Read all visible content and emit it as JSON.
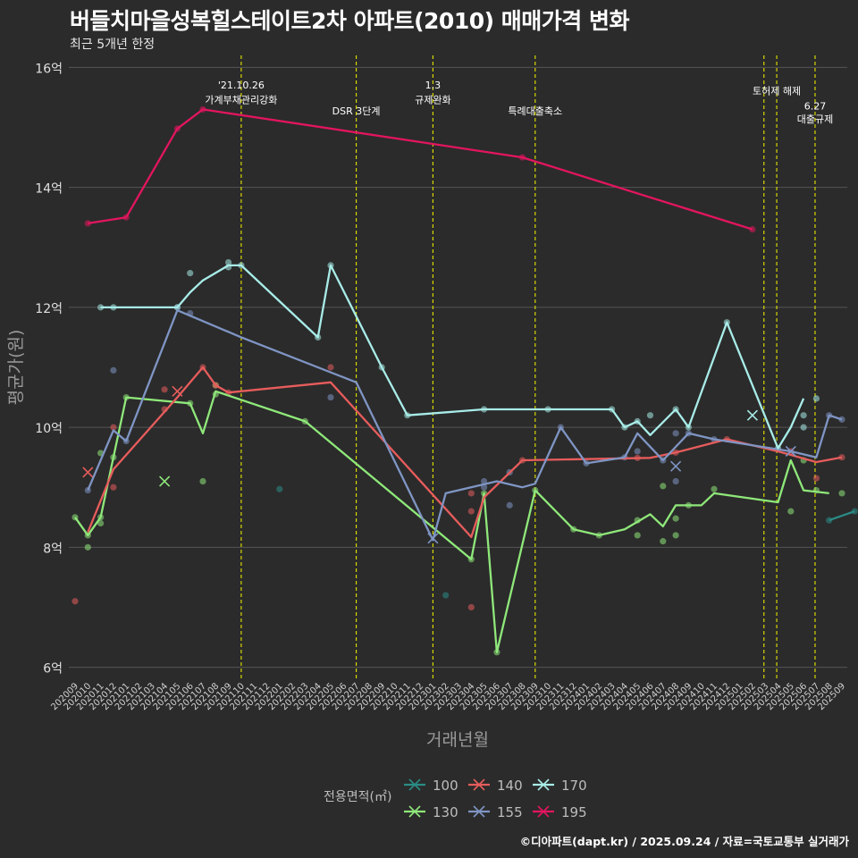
{
  "title": "버들치마을성복힐스테이트2차 아파트(2010) 매매가격 변화",
  "subtitle": "최근 5개년 한정",
  "footer": "©디아파트(dapt.kr) / 2025.09.24 / 자료=국토교통부 실거래가",
  "colors": {
    "background": "#2b2b2b",
    "grid": "#555555",
    "event_line": "#e6e600",
    "s100": "#2a8c86",
    "s130": "#8fe87a",
    "s140": "#e85c5c",
    "s155": "#7f95c4",
    "s170": "#a8ece8",
    "s195": "#e3155f"
  },
  "chart_data": {
    "type": "line",
    "title": "버들치마을성복힐스테이트2차 아파트(2010) 매매가격 변화",
    "subtitle": "최근 5개년 한정",
    "xlabel": "거래년월",
    "ylabel": "평균가(원)",
    "ylim": [
      5.8,
      16.2
    ],
    "yticks": [
      6,
      8,
      10,
      12,
      14,
      16
    ],
    "ytick_labels": [
      "6억",
      "8억",
      "10억",
      "12억",
      "14억",
      "16억"
    ],
    "x_categories": [
      "202009",
      "202010",
      "202011",
      "202012",
      "202101",
      "202102",
      "202103",
      "202104",
      "202105",
      "202106",
      "202107",
      "202108",
      "202109",
      "202110",
      "202111",
      "202112",
      "202201",
      "202202",
      "202203",
      "202204",
      "202205",
      "202206",
      "202207",
      "202208",
      "202209",
      "202210",
      "202211",
      "202212",
      "202301",
      "202302",
      "202303",
      "202304",
      "202305",
      "202306",
      "202307",
      "202308",
      "202309",
      "202310",
      "202311",
      "202312",
      "202401",
      "202402",
      "202403",
      "202404",
      "202405",
      "202406",
      "202407",
      "202408",
      "202409",
      "202410",
      "202411",
      "202412",
      "202501",
      "202502",
      "202503",
      "202504",
      "202505",
      "202506",
      "202507",
      "202508",
      "202509"
    ],
    "legend_title": "전용면적(㎡)",
    "legend_position": "bottom",
    "series": [
      {
        "name": "100",
        "color_key": "s100",
        "line": [
          [
            59,
            8.45
          ],
          [
            61,
            8.6
          ]
        ],
        "points": [
          [
            16,
            8.97
          ],
          [
            29,
            7.2
          ],
          [
            59,
            8.45
          ],
          [
            61,
            8.6
          ]
        ],
        "crosses": []
      },
      {
        "name": "130",
        "color_key": "s130",
        "line": [
          [
            0,
            8.5
          ],
          [
            1,
            8.2
          ],
          [
            2,
            8.5
          ],
          [
            3,
            9.5
          ],
          [
            4,
            10.5
          ],
          [
            9,
            10.4
          ],
          [
            10,
            9.9
          ],
          [
            11,
            10.6
          ],
          [
            18,
            10.1
          ],
          [
            31,
            7.8
          ],
          [
            32,
            8.9
          ],
          [
            33,
            6.25
          ],
          [
            36,
            8.95
          ],
          [
            39,
            8.3
          ],
          [
            41,
            8.2
          ],
          [
            43,
            8.3
          ],
          [
            45,
            8.55
          ],
          [
            46,
            8.35
          ],
          [
            47,
            8.7
          ],
          [
            49,
            8.7
          ],
          [
            50,
            8.9
          ],
          [
            55,
            8.75
          ],
          [
            56,
            9.45
          ],
          [
            57,
            8.95
          ],
          [
            59,
            8.9
          ]
        ],
        "points": [
          [
            0,
            8.5
          ],
          [
            1,
            8.2
          ],
          [
            1,
            8.0
          ],
          [
            2,
            8.4
          ],
          [
            2,
            8.5
          ],
          [
            2,
            9.57
          ],
          [
            3,
            9.5
          ],
          [
            4,
            10.5
          ],
          [
            9,
            10.4
          ],
          [
            10,
            9.1
          ],
          [
            11,
            10.55
          ],
          [
            11,
            10.7
          ],
          [
            18,
            10.1
          ],
          [
            31,
            7.8
          ],
          [
            32,
            8.9
          ],
          [
            33,
            6.25
          ],
          [
            36,
            8.95
          ],
          [
            39,
            8.3
          ],
          [
            41,
            8.2
          ],
          [
            44,
            8.45
          ],
          [
            44,
            8.2
          ],
          [
            46,
            8.1
          ],
          [
            46,
            9.02
          ],
          [
            47,
            8.2
          ],
          [
            47,
            8.48
          ],
          [
            48,
            8.7
          ],
          [
            50,
            8.97
          ],
          [
            56,
            8.6
          ],
          [
            57,
            9.45
          ],
          [
            58,
            8.95
          ],
          [
            60,
            8.9
          ]
        ],
        "crosses": [
          [
            7,
            9.1
          ]
        ]
      },
      {
        "name": "140",
        "color_key": "s140",
        "line": [
          [
            1,
            8.25
          ],
          [
            3,
            9.3
          ],
          [
            8,
            10.5
          ],
          [
            10,
            11.0
          ],
          [
            11,
            10.7
          ],
          [
            12,
            10.58
          ],
          [
            20,
            10.75
          ],
          [
            31,
            8.17
          ],
          [
            32,
            8.83
          ],
          [
            35,
            9.45
          ],
          [
            45,
            9.49
          ],
          [
            47,
            9.58
          ],
          [
            51,
            9.8
          ],
          [
            55,
            9.6
          ],
          [
            58,
            9.42
          ],
          [
            60,
            9.5
          ]
        ],
        "points": [
          [
            0,
            7.1
          ],
          [
            3,
            9.0
          ],
          [
            3,
            10.0
          ],
          [
            7,
            10.3
          ],
          [
            7,
            10.63
          ],
          [
            10,
            11.0
          ],
          [
            11,
            10.7
          ],
          [
            12,
            10.58
          ],
          [
            20,
            11.0
          ],
          [
            31,
            8.6
          ],
          [
            31,
            7.0
          ],
          [
            31,
            8.9
          ],
          [
            35,
            9.45
          ],
          [
            44,
            9.49
          ],
          [
            47,
            9.58
          ],
          [
            51,
            9.8
          ],
          [
            56,
            9.6
          ],
          [
            58,
            9.15
          ],
          [
            60,
            9.5
          ]
        ],
        "crosses": [
          [
            1,
            9.25
          ],
          [
            8,
            10.6
          ]
        ]
      },
      {
        "name": "155",
        "color_key": "s155",
        "line": [
          [
            1,
            8.95
          ],
          [
            3,
            9.95
          ],
          [
            4,
            9.77
          ],
          [
            8,
            11.95
          ],
          [
            13,
            11.5
          ],
          [
            22,
            10.75
          ],
          [
            28,
            8.12
          ],
          [
            29,
            8.9
          ],
          [
            33,
            9.1
          ],
          [
            35,
            9.0
          ],
          [
            36,
            9.06
          ],
          [
            38,
            10.0
          ],
          [
            40,
            9.4
          ],
          [
            43,
            9.5
          ],
          [
            44,
            9.9
          ],
          [
            46,
            9.45
          ],
          [
            48,
            9.9
          ],
          [
            50,
            9.8
          ],
          [
            56,
            9.6
          ],
          [
            58,
            9.5
          ],
          [
            59,
            10.2
          ],
          [
            60,
            10.13
          ]
        ],
        "points": [
          [
            1,
            8.95
          ],
          [
            3,
            10.95
          ],
          [
            4,
            9.77
          ],
          [
            8,
            12.0
          ],
          [
            9,
            11.9
          ],
          [
            20,
            10.5
          ],
          [
            32,
            9.1
          ],
          [
            32,
            9.0
          ],
          [
            34,
            9.25
          ],
          [
            34,
            8.7
          ],
          [
            38,
            10.0
          ],
          [
            40,
            9.4
          ],
          [
            43,
            9.5
          ],
          [
            44,
            9.6
          ],
          [
            46,
            9.45
          ],
          [
            47,
            9.1
          ],
          [
            47,
            9.9
          ],
          [
            48,
            9.9
          ],
          [
            50,
            9.8
          ],
          [
            59,
            10.2
          ],
          [
            60,
            10.13
          ]
        ],
        "crosses": [
          [
            28,
            8.15
          ],
          [
            47,
            9.35
          ],
          [
            56,
            9.6
          ]
        ]
      },
      {
        "name": "170",
        "color_key": "s170",
        "line": [
          [
            2,
            12.0
          ],
          [
            8,
            12.0
          ],
          [
            9,
            12.25
          ],
          [
            10,
            12.45
          ],
          [
            12,
            12.7
          ],
          [
            13,
            12.7
          ],
          [
            19,
            11.5
          ],
          [
            20,
            12.7
          ],
          [
            24,
            11.0
          ],
          [
            26,
            10.2
          ],
          [
            32,
            10.3
          ],
          [
            37,
            10.3
          ],
          [
            42,
            10.3
          ],
          [
            43,
            10.0
          ],
          [
            44,
            10.1
          ],
          [
            45,
            9.87
          ],
          [
            47,
            10.3
          ],
          [
            48,
            10.0
          ],
          [
            51,
            11.75
          ],
          [
            55,
            9.65
          ],
          [
            56,
            10.0
          ],
          [
            57,
            10.48
          ]
        ],
        "points": [
          [
            2,
            12.0
          ],
          [
            3,
            12.0
          ],
          [
            8,
            12.0
          ],
          [
            9,
            12.57
          ],
          [
            12,
            12.75
          ],
          [
            12,
            12.67
          ],
          [
            13,
            12.7
          ],
          [
            19,
            11.5
          ],
          [
            20,
            12.7
          ],
          [
            24,
            11.0
          ],
          [
            26,
            10.2
          ],
          [
            32,
            10.3
          ],
          [
            37,
            10.3
          ],
          [
            42,
            10.3
          ],
          [
            43,
            10.0
          ],
          [
            44,
            10.1
          ],
          [
            45,
            10.2
          ],
          [
            47,
            10.3
          ],
          [
            48,
            10.0
          ],
          [
            51,
            11.75
          ],
          [
            55,
            9.65
          ],
          [
            57,
            10.0
          ],
          [
            57,
            10.2
          ],
          [
            58,
            10.48
          ]
        ],
        "crosses": [
          [
            53,
            10.2
          ]
        ]
      },
      {
        "name": "195",
        "color_key": "s195",
        "line": [
          [
            1,
            13.4
          ],
          [
            4,
            13.5
          ],
          [
            8,
            14.98
          ],
          [
            10,
            15.3
          ],
          [
            35,
            14.5
          ],
          [
            53,
            13.3
          ]
        ],
        "points": [
          [
            1,
            13.4
          ],
          [
            4,
            13.5
          ],
          [
            8,
            14.98
          ],
          [
            10,
            15.3
          ],
          [
            35,
            14.5
          ],
          [
            53,
            13.3
          ]
        ],
        "crosses": []
      }
    ],
    "events": [
      {
        "x": 13,
        "label_lines": [
          "'21.10.26",
          "가계부채관리강화"
        ],
        "label_y": [
          15.65,
          15.4
        ]
      },
      {
        "x": 22,
        "label_lines": [
          "DSR 3단계"
        ],
        "label_y": [
          15.22
        ]
      },
      {
        "x": 28,
        "label_lines": [
          "1.3",
          "규제완화"
        ],
        "label_y": [
          15.65,
          15.4
        ]
      },
      {
        "x": 36,
        "label_lines": [
          "특례대출축소"
        ],
        "label_y": [
          15.22
        ]
      },
      {
        "x": 53.9,
        "label_lines": [],
        "label_y": []
      },
      {
        "x": 54.9,
        "label_lines": [
          "토허제 해제"
        ],
        "label_y": [
          15.55
        ]
      },
      {
        "x": 57.9,
        "label_lines": [
          "6.27",
          "대출규제"
        ],
        "label_y": [
          15.3,
          15.08
        ]
      }
    ]
  }
}
